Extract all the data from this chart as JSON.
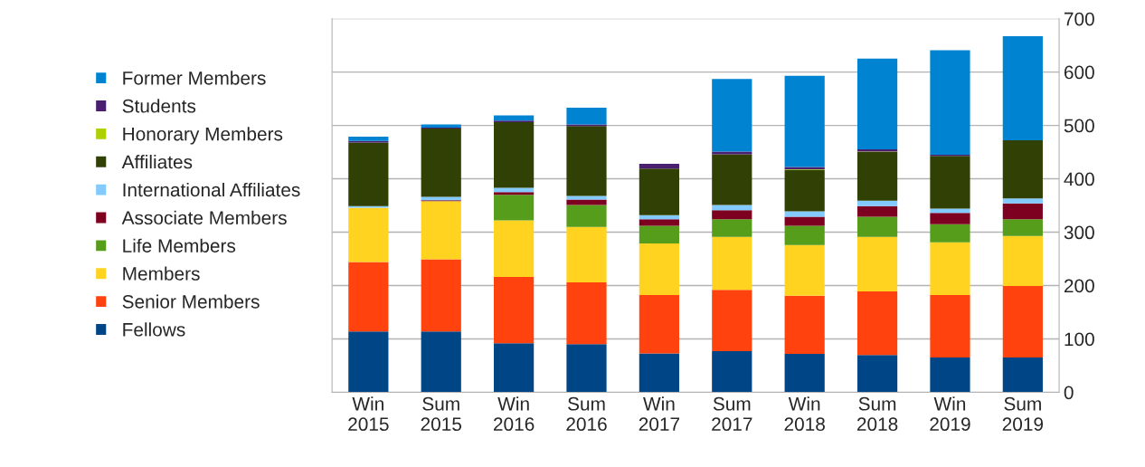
{
  "chart_data": {
    "type": "bar",
    "stacked": true,
    "categories": [
      "Win\n2015",
      "Sum\n2015",
      "Win\n2016",
      "Sum\n2016",
      "Win\n2017",
      "Sum\n2017",
      "Win\n2018",
      "Sum\n2018",
      "Win\n2019",
      "Sum\n2019"
    ],
    "series": [
      {
        "name": "Fellows",
        "color": "#004586",
        "values": [
          114,
          114,
          92,
          90,
          73,
          77,
          72,
          70,
          65,
          65
        ]
      },
      {
        "name": "Senior Members",
        "color": "#ff420e",
        "values": [
          130,
          135,
          124,
          116,
          109,
          115,
          109,
          119,
          117,
          134
        ]
      },
      {
        "name": "Members",
        "color": "#ffd320",
        "values": [
          102,
          109,
          106,
          104,
          97,
          99,
          95,
          102,
          99,
          94
        ]
      },
      {
        "name": "Life Members",
        "color": "#579d1c",
        "values": [
          0,
          0,
          48,
          41,
          33,
          33,
          36,
          38,
          34,
          31
        ]
      },
      {
        "name": "Associate Members",
        "color": "#7e0021",
        "values": [
          0,
          2,
          5,
          10,
          12,
          17,
          17,
          20,
          21,
          30
        ]
      },
      {
        "name": "International Affiliates",
        "color": "#83caff",
        "values": [
          3,
          6,
          8,
          7,
          8,
          10,
          10,
          10,
          8,
          9
        ]
      },
      {
        "name": "Affiliates",
        "color": "#314004",
        "values": [
          119,
          128,
          123,
          131,
          87,
          95,
          78,
          91,
          99,
          109
        ]
      },
      {
        "name": "Honorary Members",
        "color": "#aecf00",
        "values": [
          0,
          0,
          0,
          0,
          0,
          null,
          1,
          1,
          null,
          null
        ]
      },
      {
        "name": "Students",
        "color": "#4b1f6f",
        "values": [
          3,
          2,
          3,
          3,
          9,
          5,
          4,
          4,
          2,
          0
        ]
      },
      {
        "name": "Former Members",
        "color": "#0084d1",
        "values": [
          8,
          6,
          10,
          31,
          0,
          136,
          171,
          170,
          196,
          195
        ]
      }
    ],
    "ylim": [
      0,
      700
    ],
    "yticks": [
      0,
      100,
      200,
      300,
      400,
      500,
      600,
      700
    ],
    "grid": "y",
    "legend": "left"
  }
}
